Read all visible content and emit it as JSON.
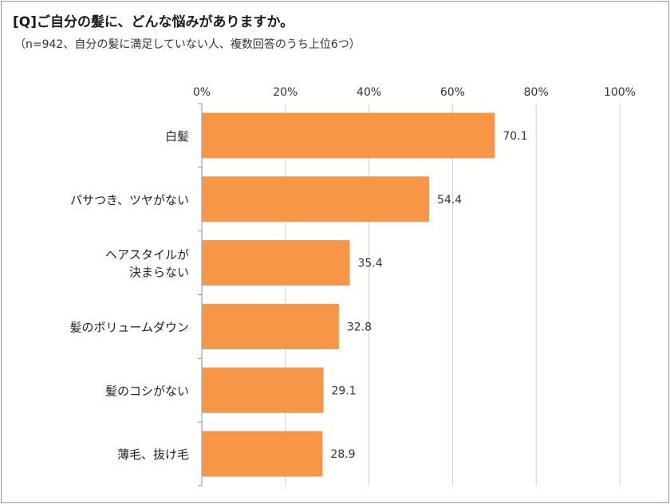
{
  "chart_data": {
    "type": "bar",
    "orientation": "horizontal",
    "title": "[Q]ご自分の髪に、どんな悩みがありますか。",
    "subtitle": "（n=942、自分の髪に満足していない人、複数回答のうち上位6つ）",
    "categories": [
      [
        "白髪"
      ],
      [
        "パサつき、ツヤがない"
      ],
      [
        "ヘアスタイルが",
        "決まらない"
      ],
      [
        "髪のボリュームダウン"
      ],
      [
        "髪のコシがない"
      ],
      [
        "薄毛、抜け毛"
      ]
    ],
    "values": [
      70.1,
      54.4,
      35.4,
      32.8,
      29.1,
      28.9
    ],
    "value_labels": [
      "70.1",
      "54.4",
      "35.4",
      "32.8",
      "29.1",
      "28.9"
    ],
    "xlim": [
      0,
      100
    ],
    "xticks": [
      0,
      20,
      40,
      60,
      80,
      100
    ],
    "xtick_labels": [
      "0%",
      "20%",
      "40%",
      "60%",
      "80%",
      "100%"
    ],
    "xaxis_position": "top",
    "grid": true,
    "bar_color": "#F79646",
    "grid_color": "#d0d0d0"
  }
}
